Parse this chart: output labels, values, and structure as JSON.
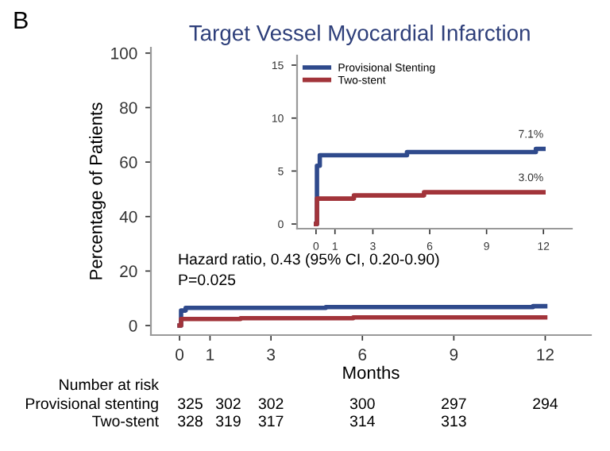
{
  "chart_data": [
    {
      "type": "step",
      "title": "Target Vessel Myocardial Infarction",
      "xlabel": "Months",
      "ylabel": "Percentage of Patients",
      "xlim": [
        -0.94,
        13.5
      ],
      "xticks": [
        0,
        1,
        3,
        6,
        9,
        12
      ],
      "ylim": [
        -3.5,
        102
      ],
      "yticks": [
        0,
        20,
        40,
        60,
        80,
        100
      ],
      "grid": false,
      "legend": false,
      "series": [
        {
          "color": "#2f4a8c",
          "x": [
            0,
            0.05,
            0.2,
            4.8,
            11.6,
            12
          ],
          "values": [
            0,
            5.5,
            6.5,
            6.8,
            7.1,
            7.1
          ]
        },
        {
          "color": "#a2343a",
          "x": [
            0,
            0.05,
            2,
            5.7,
            12
          ],
          "values": [
            0,
            2.4,
            2.7,
            3.0,
            3.0
          ]
        }
      ],
      "annotations": [
        "B",
        "Hazard ratio, 0.43 (95% CI, 0.20-0.90)",
        "P=0.025",
        "Number at risk",
        "Provisional stenting",
        "Two-stent",
        "325",
        "302",
        "302",
        "300",
        "297",
        "294",
        "328",
        "319",
        "317",
        "314",
        "313"
      ]
    },
    {
      "type": "step",
      "xlim": [
        -1.0,
        13.5
      ],
      "xticks": [
        0,
        1,
        3,
        6,
        9,
        12
      ],
      "ylim": [
        -0.44,
        15.9
      ],
      "yticks": [
        0,
        5,
        10,
        15
      ],
      "grid": false,
      "legend": "top left",
      "series": [
        {
          "name": "Provisional Stenting",
          "color": "#2f4a8c",
          "x": [
            0,
            0.05,
            0.2,
            4.8,
            11.6,
            12
          ],
          "values": [
            0,
            5.5,
            6.5,
            6.8,
            7.1,
            7.1
          ]
        },
        {
          "name": "Two-stent",
          "color": "#a2343a",
          "x": [
            0,
            0.05,
            2,
            5.7,
            12
          ],
          "values": [
            0,
            2.4,
            2.7,
            3.0,
            3.0
          ]
        }
      ],
      "annotations": [
        {
          "text": "7.1%",
          "x": 12,
          "y": 7.1
        },
        {
          "text": "3.0%",
          "x": 12,
          "y": 3.0
        }
      ]
    }
  ]
}
